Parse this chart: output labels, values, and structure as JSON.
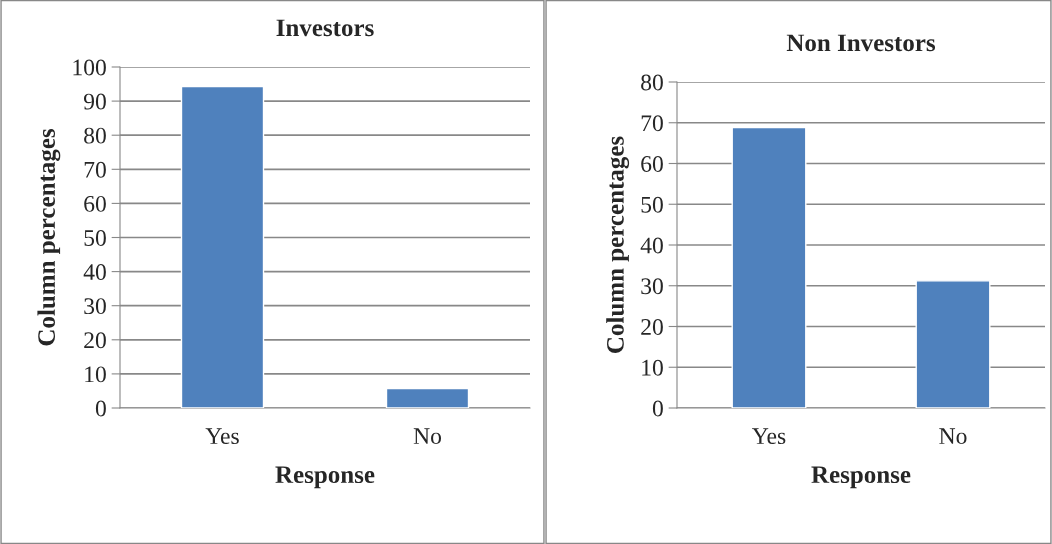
{
  "chart_data": [
    {
      "type": "bar",
      "title": "Investors",
      "xlabel": "Response",
      "ylabel": "Column percentages",
      "categories": [
        "Yes",
        "No"
      ],
      "values": [
        94.3,
        5.7
      ],
      "color": "#4f81bd",
      "ylim": [
        0,
        100
      ],
      "yticks": [
        0,
        10,
        20,
        30,
        40,
        50,
        60,
        70,
        80,
        90,
        100
      ],
      "grid": "y",
      "legend": false
    },
    {
      "type": "bar",
      "title": "Non Investors",
      "xlabel": "Response",
      "ylabel": "Column percentages",
      "categories": [
        "Yes",
        "No"
      ],
      "values": [
        68.8,
        31.2
      ],
      "color": "#4f81bd",
      "ylim": [
        0,
        80
      ],
      "yticks": [
        0,
        10,
        20,
        30,
        40,
        50,
        60,
        70,
        80
      ],
      "grid": "y",
      "legend": false
    }
  ]
}
